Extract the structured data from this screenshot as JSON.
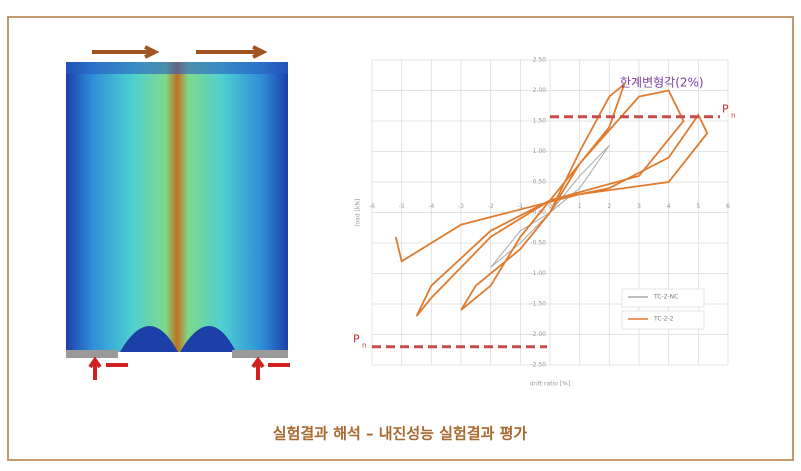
{
  "caption": "실험결과 해석 – 내진성능 실험결과 평가",
  "chart_data": {
    "type": "line",
    "annotation": "한계변형각(2%)",
    "pn_label": "P",
    "pn_subscript": "n",
    "pn_levels": [
      1.57,
      -2.2
    ],
    "ylabel": "load [kN]",
    "xlabel": "drift ratio [%]",
    "xlim": [
      -6,
      6
    ],
    "ylim": [
      -2.5,
      2.5
    ],
    "xticks": [
      -6,
      -5,
      -4,
      -3,
      -2,
      -1,
      0,
      1,
      2,
      3,
      4,
      5,
      6
    ],
    "yticks": [
      {
        "value": 2.5,
        "label": "2.50"
      },
      {
        "value": 2,
        "label": "2.00"
      },
      {
        "value": 1.5,
        "label": "1.50"
      },
      {
        "value": 1,
        "label": "1.00"
      },
      {
        "value": 0.5,
        "label": "0.50"
      },
      {
        "value": 0,
        "label": "0.00"
      },
      {
        "value": -0.5,
        "label": "-0.50"
      },
      {
        "value": -1,
        "label": "-1.00"
      },
      {
        "value": -1.5,
        "label": "-1.50"
      },
      {
        "value": -2,
        "label": "-2.00"
      },
      {
        "value": -2.5,
        "label": "-2.50"
      }
    ],
    "grid": true,
    "series": [
      {
        "name": "TC-2-NC",
        "color": "#a9a9a9",
        "x": [
          0,
          1,
          2,
          1,
          0,
          -1,
          -2,
          -1,
          0
        ],
        "values": [
          0,
          0.6,
          1.1,
          0.4,
          0,
          -0.5,
          -0.9,
          -0.3,
          0
        ]
      },
      {
        "name": "TC-2-2",
        "color": "#e07b30",
        "x": [
          0,
          1,
          2,
          2.5,
          2,
          0,
          -1,
          -2,
          -3,
          -2.5,
          -1,
          0,
          1,
          3,
          4,
          4.5,
          3,
          0,
          -2,
          -4,
          -4.5,
          -4,
          -2,
          0,
          2,
          4,
          5,
          5.3,
          4,
          1,
          -3,
          -5,
          -5.2
        ],
        "values": [
          0,
          1.0,
          1.9,
          2.1,
          1.4,
          0.2,
          -0.4,
          -1.2,
          -1.6,
          -1.2,
          -0.6,
          0,
          0.8,
          1.9,
          2.0,
          1.5,
          0.6,
          0.2,
          -0.4,
          -1.4,
          -1.7,
          -1.2,
          -0.3,
          0.2,
          0.4,
          0.9,
          1.6,
          1.3,
          0.5,
          0.3,
          -0.2,
          -0.8,
          -0.4
        ]
      }
    ]
  }
}
